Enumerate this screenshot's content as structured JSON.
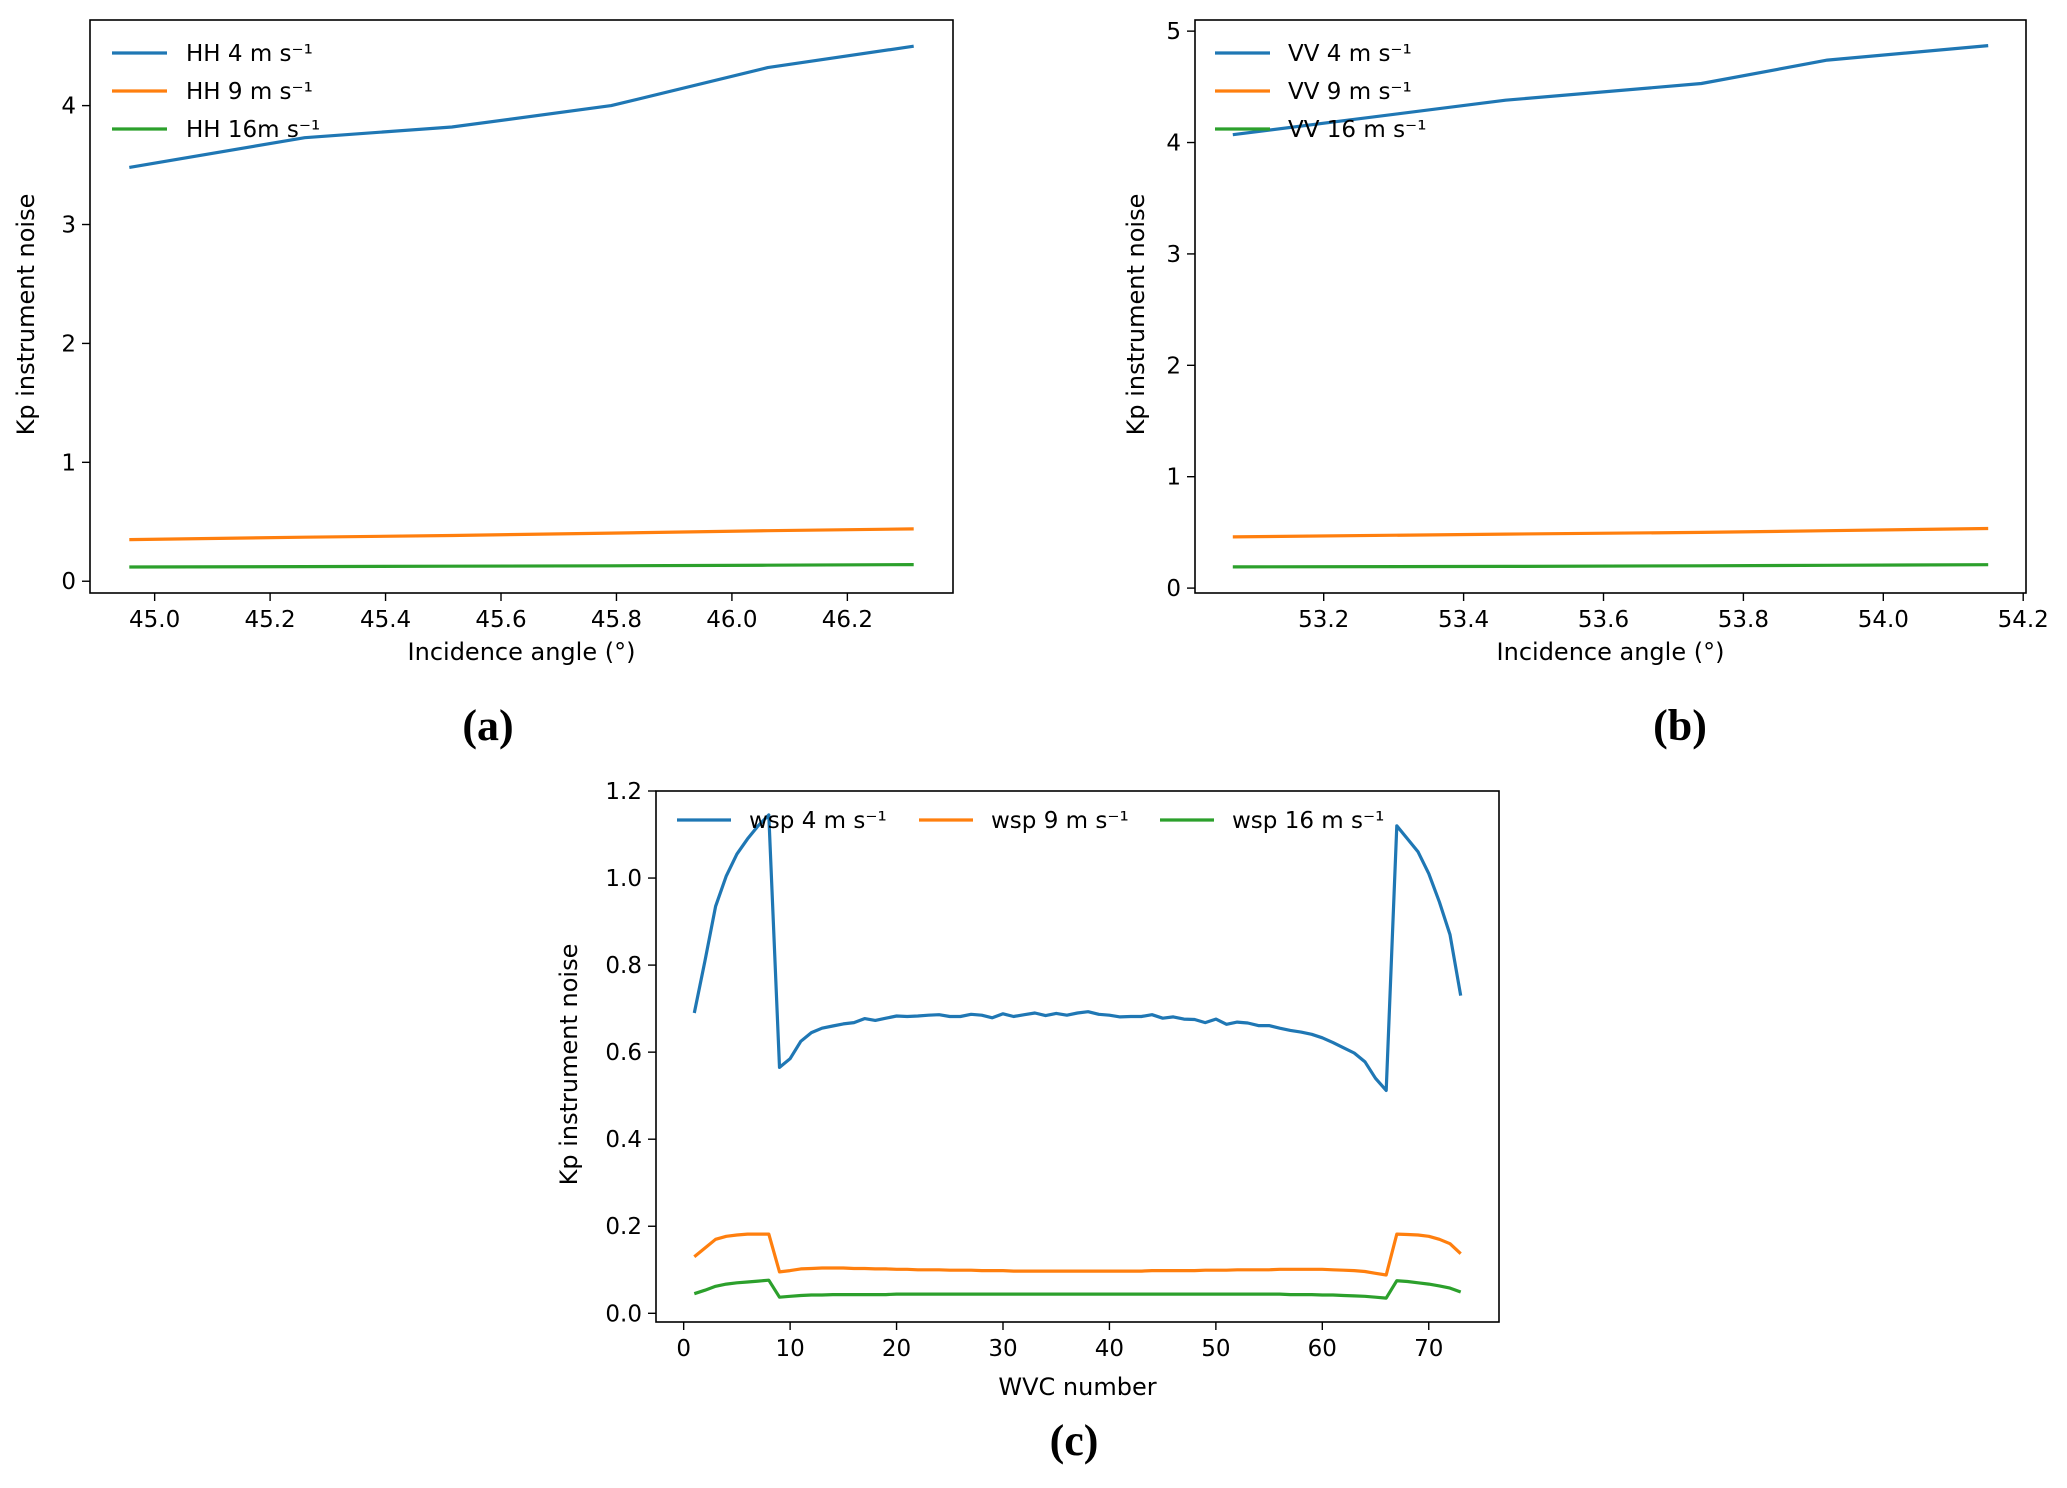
{
  "chart_data": [
    {
      "panel_label": "(a)",
      "type": "line",
      "xlabel": "Incidence angle (°)",
      "ylabel": "Kp instrument noise",
      "xlim": [
        44.888,
        46.383
      ],
      "ylim": [
        -0.099,
        4.72
      ],
      "xticks": [
        45.0,
        45.2,
        45.4,
        45.6,
        45.8,
        46.0,
        46.2
      ],
      "xtick_labels": [
        "45.0",
        "45.2",
        "45.4",
        "45.6",
        "45.8",
        "46.0",
        "46.2"
      ],
      "yticks": [
        0,
        1,
        2,
        3,
        4
      ],
      "ytick_labels": [
        "0",
        "1",
        "2",
        "3",
        "4"
      ],
      "legend": "upper-left",
      "grid": false,
      "x": [
        44.956,
        45.26,
        45.515,
        45.791,
        46.062,
        46.315
      ],
      "series": [
        {
          "name": "HH 4 m s⁻¹",
          "color": "#1f77b4",
          "values": [
            3.48,
            3.73,
            3.82,
            4.0,
            4.32,
            4.5
          ]
        },
        {
          "name": "HH 9 m s⁻¹",
          "color": "#ff7f0e",
          "values": [
            0.35,
            0.37,
            0.385,
            0.405,
            0.425,
            0.44
          ]
        },
        {
          "name": "HH 16m s⁻¹",
          "color": "#2ca02c",
          "values": [
            0.12,
            0.123,
            0.126,
            0.13,
            0.135,
            0.14
          ]
        }
      ]
    },
    {
      "panel_label": "(b)",
      "type": "line",
      "xlabel": "Incidence angle (°)",
      "ylabel": "Kp instrument noise",
      "xlim": [
        53.016,
        54.204
      ],
      "ylim": [
        -0.044,
        5.1
      ],
      "xticks": [
        53.2,
        53.4,
        53.6,
        53.8,
        54.0,
        54.2
      ],
      "xtick_labels": [
        "53.2",
        "53.4",
        "53.6",
        "53.8",
        "54.0",
        "54.2"
      ],
      "yticks": [
        0,
        1,
        2,
        3,
        4,
        5
      ],
      "ytick_labels": [
        "0",
        "1",
        "2",
        "3",
        "4",
        "5"
      ],
      "legend": "upper-left",
      "grid": false,
      "x": [
        53.07,
        53.46,
        53.74,
        53.92,
        54.15
      ],
      "series": [
        {
          "name": "VV 4 m s⁻¹",
          "color": "#1f77b4",
          "values": [
            4.07,
            4.38,
            4.53,
            4.74,
            4.87
          ]
        },
        {
          "name": "VV 9 m s⁻¹",
          "color": "#ff7f0e",
          "values": [
            0.46,
            0.485,
            0.5,
            0.515,
            0.535
          ]
        },
        {
          "name": "VV 16 m s⁻¹",
          "color": "#2ca02c",
          "values": [
            0.19,
            0.195,
            0.2,
            0.205,
            0.21
          ]
        }
      ]
    },
    {
      "panel_label": "(c)",
      "type": "line",
      "xlabel": "WVC number",
      "ylabel": "Kp instrument noise",
      "xlim": [
        -2.6,
        76.6
      ],
      "ylim": [
        -0.02,
        1.2
      ],
      "xticks": [
        0,
        10,
        20,
        30,
        40,
        50,
        60,
        70
      ],
      "xtick_labels": [
        "0",
        "10",
        "20",
        "30",
        "40",
        "50",
        "60",
        "70"
      ],
      "yticks": [
        0.0,
        0.2,
        0.4,
        0.6,
        0.8,
        1.0,
        1.2
      ],
      "ytick_labels": [
        "0.0",
        "0.2",
        "0.4",
        "0.6",
        "0.8",
        "1.0",
        "1.2"
      ],
      "legend": "upper-center",
      "grid": false,
      "x": [
        1,
        2,
        3,
        4,
        5,
        6,
        7,
        8,
        9,
        10,
        11,
        12,
        13,
        14,
        15,
        16,
        17,
        18,
        19,
        20,
        21,
        22,
        23,
        24,
        25,
        26,
        27,
        28,
        29,
        30,
        31,
        32,
        33,
        34,
        35,
        36,
        37,
        38,
        39,
        40,
        41,
        42,
        43,
        44,
        45,
        46,
        47,
        48,
        49,
        50,
        51,
        52,
        53,
        54,
        55,
        56,
        57,
        58,
        59,
        60,
        61,
        62,
        63,
        64,
        65,
        66,
        67,
        68,
        69,
        70,
        71,
        72,
        73
      ],
      "series": [
        {
          "name": "wsp 4 m s⁻¹",
          "color": "#1f77b4",
          "values": [
            0.69,
            0.81,
            0.935,
            1.005,
            1.055,
            1.09,
            1.12,
            1.145,
            0.565,
            0.585,
            0.625,
            0.645,
            0.655,
            0.66,
            0.665,
            0.668,
            0.677,
            0.673,
            0.678,
            0.683,
            0.682,
            0.683,
            0.685,
            0.686,
            0.682,
            0.682,
            0.687,
            0.685,
            0.679,
            0.688,
            0.682,
            0.686,
            0.69,
            0.684,
            0.689,
            0.685,
            0.69,
            0.693,
            0.687,
            0.685,
            0.681,
            0.682,
            0.682,
            0.686,
            0.678,
            0.681,
            0.676,
            0.675,
            0.668,
            0.676,
            0.664,
            0.669,
            0.667,
            0.661,
            0.661,
            0.655,
            0.65,
            0.646,
            0.641,
            0.633,
            0.622,
            0.61,
            0.598,
            0.578,
            0.54,
            0.512,
            1.12,
            1.09,
            1.06,
            1.01,
            0.945,
            0.87,
            0.73
          ]
        },
        {
          "name": "wsp 9 m s⁻¹",
          "color": "#ff7f0e",
          "values": [
            0.13,
            0.15,
            0.17,
            0.177,
            0.18,
            0.182,
            0.182,
            0.182,
            0.095,
            0.098,
            0.102,
            0.103,
            0.104,
            0.104,
            0.104,
            0.103,
            0.103,
            0.102,
            0.102,
            0.101,
            0.101,
            0.1,
            0.1,
            0.1,
            0.099,
            0.099,
            0.099,
            0.098,
            0.098,
            0.098,
            0.097,
            0.097,
            0.097,
            0.097,
            0.097,
            0.097,
            0.097,
            0.097,
            0.097,
            0.097,
            0.097,
            0.097,
            0.097,
            0.098,
            0.098,
            0.098,
            0.098,
            0.098,
            0.099,
            0.099,
            0.099,
            0.1,
            0.1,
            0.1,
            0.1,
            0.101,
            0.101,
            0.101,
            0.101,
            0.101,
            0.1,
            0.099,
            0.098,
            0.096,
            0.092,
            0.088,
            0.182,
            0.181,
            0.18,
            0.177,
            0.17,
            0.16,
            0.137
          ]
        },
        {
          "name": "wsp 16 m s⁻¹",
          "color": "#2ca02c",
          "values": [
            0.045,
            0.053,
            0.062,
            0.067,
            0.07,
            0.072,
            0.074,
            0.076,
            0.037,
            0.039,
            0.041,
            0.042,
            0.042,
            0.043,
            0.043,
            0.043,
            0.043,
            0.043,
            0.043,
            0.044,
            0.044,
            0.044,
            0.044,
            0.044,
            0.044,
            0.044,
            0.044,
            0.044,
            0.044,
            0.044,
            0.044,
            0.044,
            0.044,
            0.044,
            0.044,
            0.044,
            0.044,
            0.044,
            0.044,
            0.044,
            0.044,
            0.044,
            0.044,
            0.044,
            0.044,
            0.044,
            0.044,
            0.044,
            0.044,
            0.044,
            0.044,
            0.044,
            0.044,
            0.044,
            0.044,
            0.044,
            0.043,
            0.043,
            0.043,
            0.042,
            0.042,
            0.041,
            0.04,
            0.039,
            0.037,
            0.035,
            0.075,
            0.073,
            0.07,
            0.067,
            0.063,
            0.058,
            0.049
          ]
        }
      ]
    }
  ]
}
